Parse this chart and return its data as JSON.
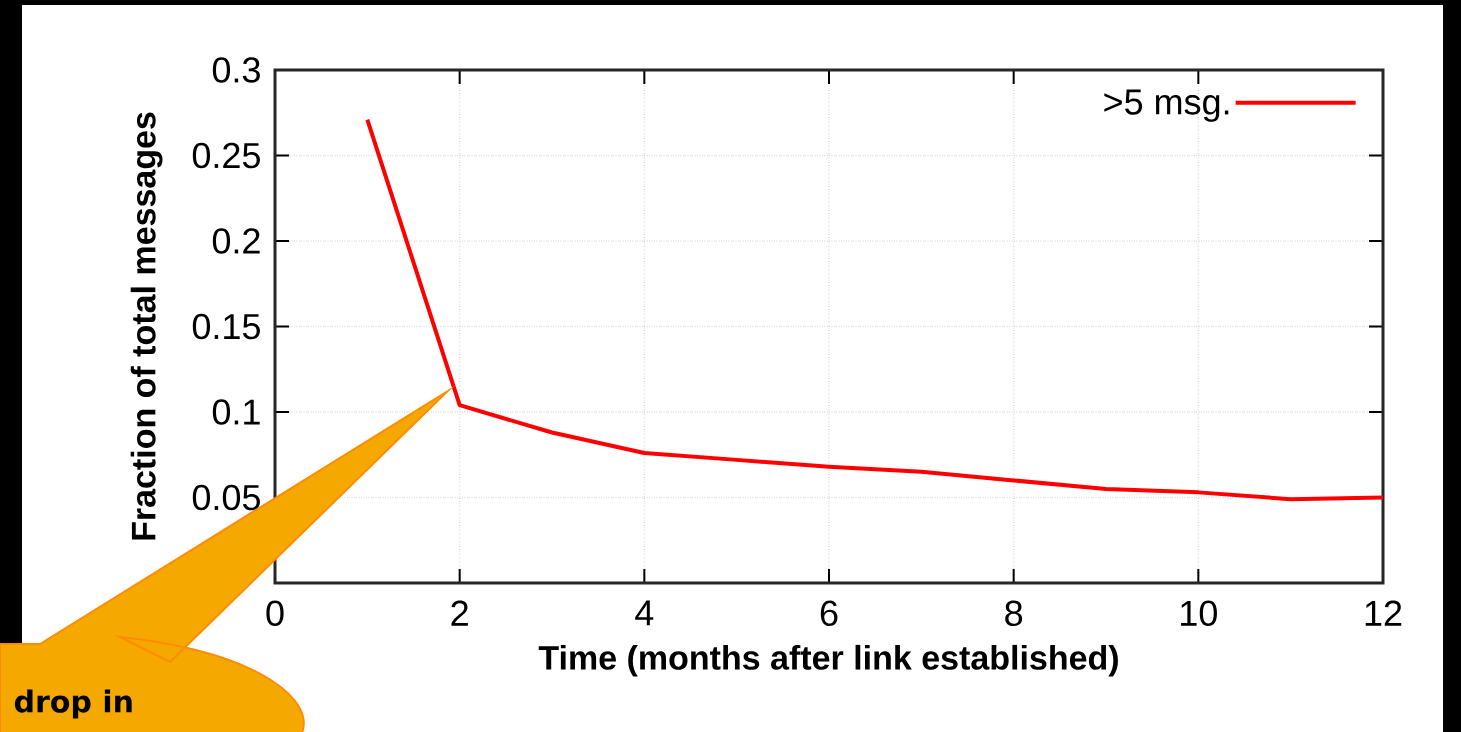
{
  "chart_data": {
    "type": "line",
    "xlabel": "Time (months after link established)",
    "ylabel": "Fraction of total messages",
    "x": [
      1,
      2,
      3,
      4,
      5,
      6,
      7,
      8,
      9,
      10,
      11,
      12
    ],
    "series": [
      {
        "name": ">5 msg.",
        "color": "#ff0000",
        "values": [
          0.271,
          0.104,
          0.088,
          0.076,
          0.072,
          0.068,
          0.065,
          0.06,
          0.055,
          0.053,
          0.049,
          0.05
        ]
      }
    ],
    "xlim": [
      0,
      12
    ],
    "xticks": [
      0,
      2,
      4,
      6,
      8,
      10,
      12
    ],
    "ylim": [
      0,
      0.3
    ],
    "yticks": [
      {
        "value": 0,
        "label": null
      },
      0.05,
      0.1,
      0.15,
      0.2,
      0.25,
      0.3
    ],
    "grid": true,
    "legend": "top right",
    "marker": "none",
    "line_style": "solid",
    "annotations": [
      "drop in"
    ]
  }
}
